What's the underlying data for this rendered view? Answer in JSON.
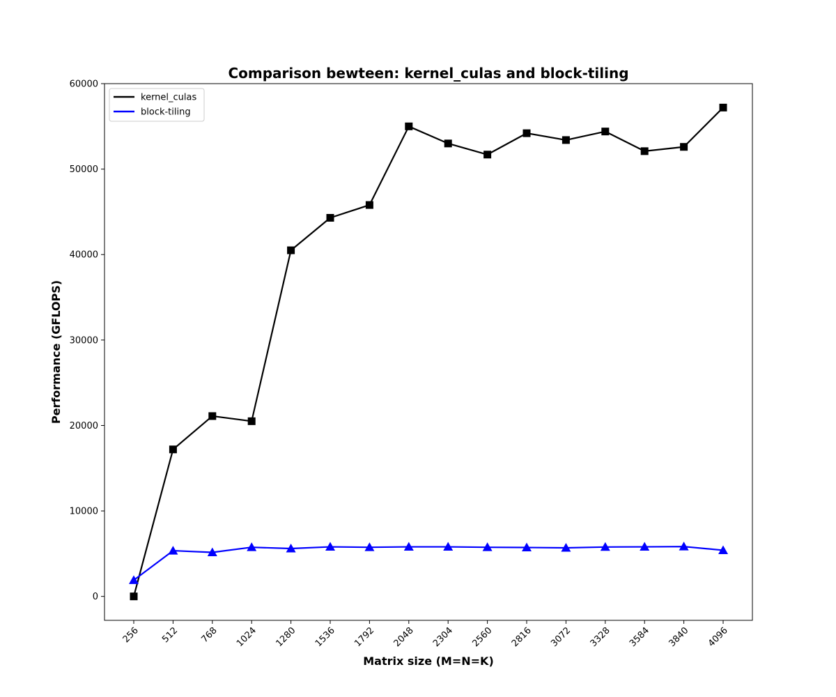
{
  "chart_data": {
    "type": "line",
    "title": "Comparison bewteen: kernel_culas and block-tiling",
    "xlabel": "Matrix size (M=N=K)",
    "ylabel": "Performance (GFLOPS)",
    "categories": [
      "256",
      "512",
      "768",
      "1024",
      "1280",
      "1536",
      "1792",
      "2048",
      "2304",
      "2560",
      "2816",
      "3072",
      "3328",
      "3584",
      "3840",
      "4096"
    ],
    "ylim": [
      -2800,
      60000
    ],
    "yticks": [
      0,
      10000,
      20000,
      30000,
      40000,
      50000,
      60000
    ],
    "yticks_labels": [
      "0",
      "10000",
      "20000",
      "30000",
      "40000",
      "50000",
      "60000"
    ],
    "grid": false,
    "legend_position": "upper-left",
    "series": [
      {
        "name": "kernel_culas",
        "color": "#000000",
        "marker": "square",
        "values": [
          0,
          17200,
          21100,
          20500,
          40500,
          44300,
          45800,
          55000,
          53000,
          51700,
          54200,
          53400,
          54400,
          52100,
          52600,
          57200
        ]
      },
      {
        "name": "block-tiling",
        "color": "#0000ff",
        "marker": "triangle",
        "values": [
          1900,
          5350,
          5150,
          5750,
          5600,
          5800,
          5750,
          5800,
          5800,
          5750,
          5720,
          5680,
          5780,
          5800,
          5830,
          5400
        ]
      }
    ]
  }
}
